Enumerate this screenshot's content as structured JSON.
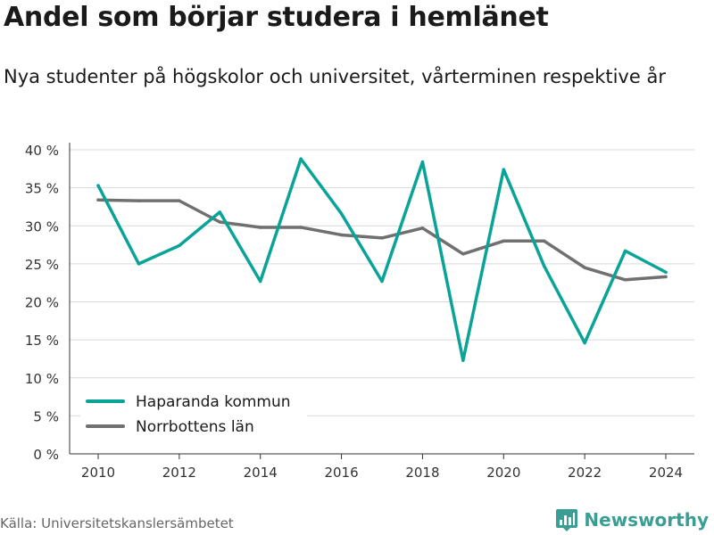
{
  "header": {
    "title": "Andel som börjar studera i hemlänet",
    "subtitle": "Nya studenter på högskolor och universitet, vårterminen respektive år"
  },
  "footer": {
    "source": "Källa: Universitetskanslersämbetet",
    "brand": "Newsworthy",
    "brand_icon": "newsworthy-logo-icon",
    "brand_color": "#3a9e94"
  },
  "chart_data": {
    "type": "line",
    "xlabel": "",
    "ylabel": "",
    "x": [
      2010,
      2011,
      2012,
      2013,
      2014,
      2015,
      2016,
      2017,
      2018,
      2019,
      2020,
      2021,
      2022,
      2023,
      2024
    ],
    "x_ticks": [
      2010,
      2012,
      2014,
      2016,
      2018,
      2020,
      2022,
      2024
    ],
    "x_tick_labels": [
      "2010",
      "2012",
      "2014",
      "2016",
      "2018",
      "2020",
      "2022",
      "2024"
    ],
    "ylim": [
      0,
      40
    ],
    "y_ticks": [
      0,
      5,
      10,
      15,
      20,
      25,
      30,
      35,
      40
    ],
    "y_tick_labels": [
      "0 %",
      "5 %",
      "10 %",
      "15 %",
      "20 %",
      "25 %",
      "30 %",
      "35 %",
      "40 %"
    ],
    "grid": true,
    "legend_position": "bottom-left",
    "series": [
      {
        "name": "Haparanda kommun",
        "color": "#0aa398",
        "values": [
          35.3,
          25.0,
          27.4,
          31.8,
          22.7,
          38.8,
          31.6,
          22.7,
          38.4,
          12.3,
          37.4,
          24.7,
          14.6,
          26.7,
          23.9
        ]
      },
      {
        "name": "Norrbottens län",
        "color": "#707070",
        "values": [
          33.4,
          33.3,
          33.3,
          30.5,
          29.8,
          29.8,
          28.8,
          28.4,
          29.7,
          26.3,
          28.0,
          28.0,
          24.5,
          22.9,
          23.3
        ]
      }
    ]
  }
}
